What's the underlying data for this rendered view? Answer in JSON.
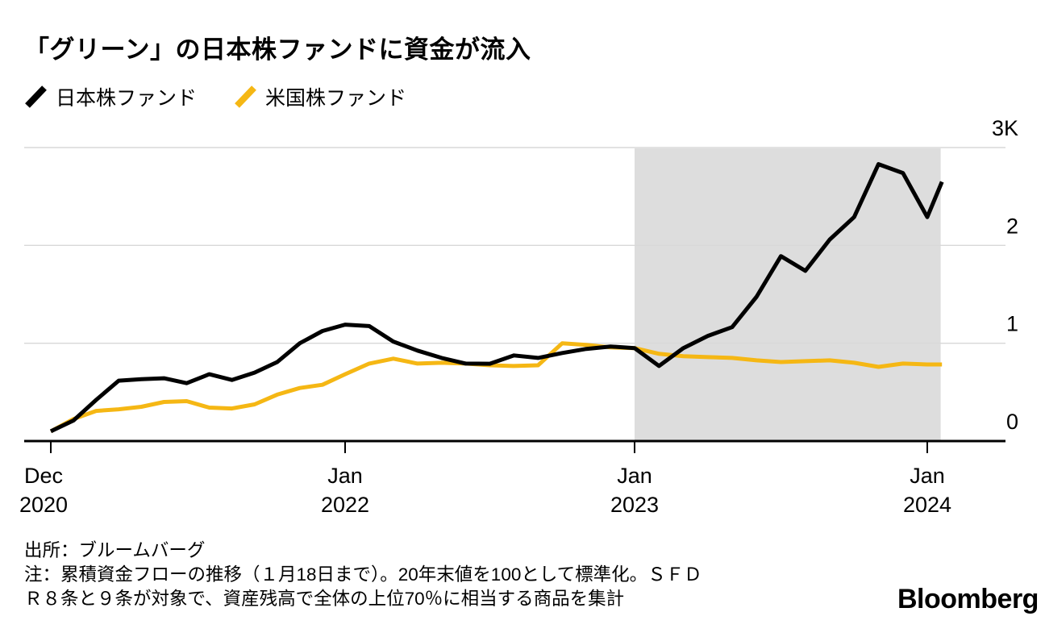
{
  "title": "「グリーン」の日本株ファンドに資金が流入",
  "legend": {
    "items": [
      {
        "label": "日本株ファンド",
        "color": "#000000"
      },
      {
        "label": "米国株ファンド",
        "color": "#F5B714"
      }
    ]
  },
  "footnotes": {
    "source": "出所：ブルームバーグ",
    "note_line1": "注：累積資金フローの推移（１月18日まで）。20年末値を100として標準化。ＳＦＤ",
    "note_line2": "Ｒ８条と９条が対象で、資産残高で全体の上位70％に相当する商品を集計"
  },
  "branding": {
    "logo": "Bloomberg"
  },
  "colors": {
    "japan_line": "#000000",
    "us_line": "#F5B714",
    "highlight_shade": "#DDDDDD",
    "gridline": "#D8D8D8"
  },
  "chart_data": {
    "type": "line",
    "title": "「グリーン」の日本株ファンドに資金が流入",
    "grid": true,
    "legend_position": "top-left",
    "ylim": [
      0,
      3000
    ],
    "y_ticks": [
      {
        "value": 0,
        "label": "0"
      },
      {
        "value": 1000,
        "label": "1"
      },
      {
        "value": 2000,
        "label": "2"
      },
      {
        "value": 3000,
        "label": "3K"
      }
    ],
    "x_ticks": [
      {
        "month": 0,
        "line1": "Dec",
        "line2": "2020"
      },
      {
        "month": 13,
        "line1": "Jan",
        "line2": "2022"
      },
      {
        "month": 25,
        "line1": "Jan",
        "line2": "2023"
      },
      {
        "month": 37,
        "line1": "Jan",
        "line2": "2024"
      }
    ],
    "highlight_region": {
      "start_month": 25,
      "end_month": 37.55
    },
    "dates": [
      "2020-12",
      "2021-01",
      "2021-02",
      "2021-03",
      "2021-04",
      "2021-05",
      "2021-06",
      "2021-07",
      "2021-08",
      "2021-09",
      "2021-10",
      "2021-11",
      "2021-12",
      "2022-01",
      "2022-02",
      "2022-03",
      "2022-04",
      "2022-05",
      "2022-06",
      "2022-07",
      "2022-08",
      "2022-09",
      "2022-10",
      "2022-11",
      "2022-12",
      "2023-01",
      "2023-02",
      "2023-03",
      "2023-04",
      "2023-05",
      "2023-06",
      "2023-07",
      "2023-08",
      "2023-09",
      "2023-10",
      "2023-11",
      "2023-12",
      "2024-01",
      "2024-01-18"
    ],
    "x_month_index": [
      0,
      1,
      2,
      3,
      4,
      5,
      6,
      7,
      8,
      9,
      10,
      11,
      12,
      13,
      14,
      15,
      16,
      17,
      18,
      19,
      20,
      21,
      22,
      23,
      24,
      25,
      26,
      27,
      28,
      29,
      30,
      31,
      32,
      33,
      34,
      35,
      36,
      37,
      37.6
    ],
    "series": [
      {
        "name": "日本株ファンド",
        "color": "#000000",
        "values": [
          100,
          210,
          420,
          617,
          633,
          642,
          592,
          683,
          625,
          700,
          808,
          1000,
          1125,
          1190,
          1175,
          1017,
          925,
          850,
          792,
          790,
          875,
          850,
          900,
          942,
          967,
          950,
          767,
          950,
          1075,
          1165,
          1475,
          1890,
          1740,
          2060,
          2290,
          2830,
          2740,
          2290,
          2650
        ]
      },
      {
        "name": "米国株ファンド",
        "color": "#F5B714",
        "values": [
          100,
          225,
          308,
          325,
          350,
          400,
          408,
          342,
          333,
          375,
          475,
          542,
          575,
          683,
          792,
          842,
          792,
          800,
          792,
          775,
          767,
          775,
          1000,
          983,
          958,
          950,
          892,
          867,
          858,
          850,
          825,
          808,
          817,
          825,
          800,
          758,
          792,
          783,
          783
        ]
      }
    ]
  }
}
